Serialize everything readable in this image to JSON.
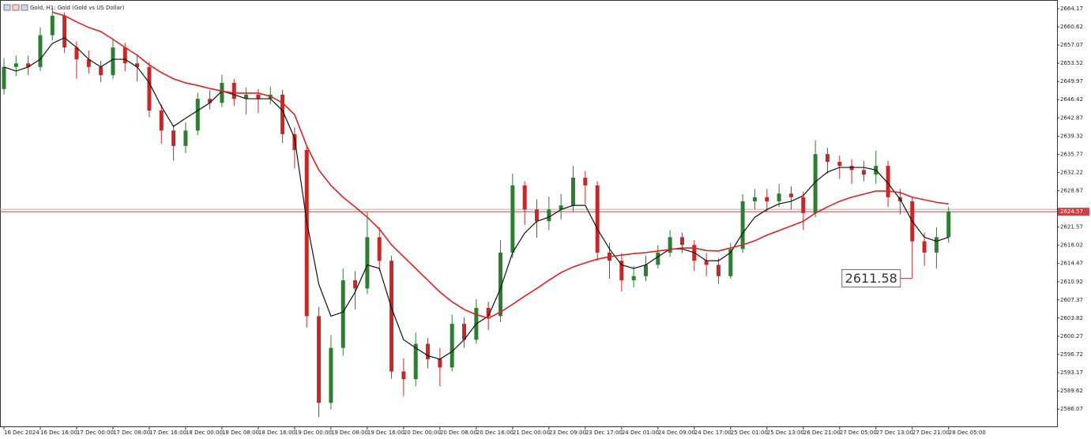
{
  "chart_data": {
    "type": "candlestick",
    "title": "Gold, H1:  Gold (Gold vs US Dollar)",
    "categories": [
      "16 Dec 2024",
      null,
      null,
      "16 Dec 16:00",
      null,
      null,
      "17 Dec 00:00",
      null,
      null,
      "17 Dec 08:00",
      null,
      null,
      "17 Dec 16:00",
      null,
      null,
      "18 Dec 00:00",
      null,
      null,
      "18 Dec 08:00",
      null,
      null,
      "18 Dec 16:00",
      null,
      null,
      "19 Dec 00:00",
      null,
      null,
      "19 Dec 08:00",
      null,
      null,
      "19 Dec 16:00",
      null,
      null,
      "20 Dec 00:00",
      null,
      null,
      "20 Dec 08:00",
      null,
      null,
      "20 Dec 16:00",
      null,
      null,
      "21 Dec 00:00",
      null,
      null,
      "23 Dec 09:00",
      null,
      null,
      "23 Dec 17:00",
      null,
      null,
      "24 Dec 01:00",
      null,
      null,
      "24 Dec 09:00",
      null,
      null,
      "24 Dec 17:00",
      null,
      null,
      "25 Dec 01:00",
      null,
      null,
      "25 Dec 13:00",
      null,
      null,
      "26 Dec 21:00",
      null,
      null,
      "27 Dec 05:00",
      null,
      null,
      "27 Dec 13:00",
      null,
      null,
      "27 Dec 21:00",
      null,
      null,
      "28 Dec 05:00"
    ],
    "open": [
      2648.5,
      2652.8,
      2653.5,
      2652.8,
      2659.0,
      2662.8,
      2656.6,
      2654.3,
      2652.8,
      2651.2,
      2656.6,
      2653.5,
      2652.8,
      2644.3,
      2640.4,
      2637.4,
      2640.4,
      2646.6,
      2645.8,
      2649.7,
      2646.6,
      2647.4,
      2646.6,
      2647.4,
      2639.7,
      2636.6,
      2604.2,
      2587.3,
      2598.0,
      2611.2,
      2609.6,
      2619.6,
      2615.0,
      2593.4,
      2591.9,
      2598.8,
      2595.8,
      2594.2,
      2602.7,
      2599.6,
      2605.8,
      2604.2,
      2616.6,
      2629.7,
      2625.0,
      2622.7,
      2625.0,
      2625.8,
      2631.2,
      2629.7,
      2616.6,
      2615.0,
      2611.2,
      2612.0,
      2614.2,
      2616.6,
      2619.6,
      2618.1,
      2615.0,
      2614.2,
      2612.0,
      2617.3,
      2626.6,
      2627.4,
      2626.6,
      2628.1,
      2627.4,
      2624.3,
      2635.8,
      2634.3,
      2633.5,
      2632.7,
      2631.8,
      2633.5,
      2627.4,
      2626.6,
      2618.8,
      2616.6,
      2619.6
    ],
    "high": [
      2654.5,
      2655.0,
      2655.0,
      2660.5,
      2664.5,
      2663.5,
      2657.8,
      2656.0,
      2654.0,
      2658.3,
      2657.5,
      2655.0,
      2653.8,
      2645.5,
      2641.5,
      2642.0,
      2647.8,
      2648.2,
      2651.3,
      2650.5,
      2648.8,
      2648.5,
      2649.0,
      2648.3,
      2641.0,
      2637.5,
      2606.0,
      2600.5,
      2613.5,
      2613.0,
      2624.5,
      2621.5,
      2616.0,
      2596.0,
      2601.0,
      2600.0,
      2598.0,
      2604.5,
      2604.0,
      2607.5,
      2607.0,
      2619.0,
      2632.0,
      2630.5,
      2627.0,
      2627.5,
      2628.0,
      2633.5,
      2632.5,
      2630.5,
      2618.5,
      2616.5,
      2614.0,
      2616.0,
      2618.0,
      2621.0,
      2620.5,
      2619.0,
      2616.5,
      2615.5,
      2618.5,
      2628.0,
      2629.0,
      2629.0,
      2630.0,
      2629.5,
      2628.5,
      2638.5,
      2637.0,
      2635.5,
      2634.8,
      2634.5,
      2636.5,
      2634.5,
      2629.0,
      2627.5,
      2620.5,
      2621.5,
      2625.5
    ],
    "low": [
      2647.4,
      2651.0,
      2651.2,
      2652.0,
      2658.0,
      2655.5,
      2650.5,
      2651.5,
      2649.8,
      2650.5,
      2652.0,
      2650.0,
      2643.0,
      2637.8,
      2634.5,
      2636.0,
      2639.5,
      2644.5,
      2645.0,
      2645.2,
      2643.5,
      2643.8,
      2645.5,
      2638.0,
      2633.0,
      2602.0,
      2584.5,
      2586.0,
      2596.5,
      2605.5,
      2608.5,
      2613.0,
      2592.0,
      2588.6,
      2590.5,
      2594.0,
      2590.5,
      2593.5,
      2598.0,
      2598.8,
      2601.5,
      2603.0,
      2615.5,
      2622.0,
      2619.5,
      2621.0,
      2623.0,
      2624.5,
      2626.0,
      2615.0,
      2611.5,
      2609.0,
      2609.8,
      2611.0,
      2613.5,
      2615.8,
      2616.5,
      2613.0,
      2612.0,
      2610.5,
      2611.5,
      2616.5,
      2625.0,
      2624.5,
      2625.5,
      2625.0,
      2621.0,
      2623.5,
      2632.0,
      2631.0,
      2630.0,
      2630.5,
      2630.0,
      2625.5,
      2624.0,
      2611.58,
      2614.0,
      2613.5,
      2618.5
    ],
    "close": [
      2652.8,
      2653.5,
      2652.8,
      2659.0,
      2662.8,
      2656.6,
      2654.3,
      2652.8,
      2651.2,
      2656.6,
      2653.5,
      2652.8,
      2644.3,
      2640.4,
      2637.4,
      2640.4,
      2646.6,
      2645.8,
      2649.7,
      2646.6,
      2647.4,
      2646.6,
      2647.4,
      2639.7,
      2636.6,
      2604.2,
      2587.3,
      2598.0,
      2611.2,
      2609.6,
      2619.6,
      2615.0,
      2593.4,
      2591.9,
      2598.8,
      2595.8,
      2594.2,
      2602.7,
      2599.6,
      2605.8,
      2604.2,
      2616.6,
      2629.7,
      2625.0,
      2622.7,
      2625.0,
      2625.8,
      2631.2,
      2629.7,
      2616.6,
      2615.0,
      2611.2,
      2612.0,
      2614.2,
      2616.6,
      2619.6,
      2618.1,
      2615.0,
      2614.2,
      2612.0,
      2617.3,
      2626.6,
      2627.4,
      2626.6,
      2628.1,
      2627.4,
      2624.3,
      2635.8,
      2634.3,
      2633.5,
      2632.7,
      2631.8,
      2633.5,
      2627.4,
      2626.6,
      2618.8,
      2616.6,
      2619.6,
      2624.57
    ],
    "up_color": "#2e7d32",
    "down_color": "#c62828",
    "lines": [
      {
        "color": "#111111",
        "values": [
          2652.8,
          2652.0,
          2652.8,
          2654.3,
          2657.4,
          2658.5,
          2656.6,
          2654.3,
          2652.8,
          2654.3,
          2654.3,
          2652.8,
          2649.7,
          2645.1,
          2641.2,
          2642.8,
          2644.3,
          2645.8,
          2648.1,
          2647.4,
          2646.6,
          2646.6,
          2646.6,
          2644.3,
          2638.9,
          2622.7,
          2610.4,
          2604.2,
          2605.0,
          2608.9,
          2614.2,
          2613.5,
          2605.8,
          2599.6,
          2598.0,
          2596.5,
          2595.8,
          2597.3,
          2599.6,
          2602.7,
          2604.2,
          2609.6,
          2616.6,
          2620.4,
          2622.7,
          2623.5,
          2625.0,
          2625.8,
          2625.8,
          2621.2,
          2617.3,
          2614.2,
          2613.5,
          2614.2,
          2615.8,
          2617.3,
          2617.3,
          2616.6,
          2615.0,
          2615.0,
          2616.6,
          2620.4,
          2623.5,
          2625.0,
          2626.1,
          2626.6,
          2627.7,
          2630.4,
          2632.3,
          2633.2,
          2633.2,
          2633.2,
          2632.7,
          2630.1,
          2627.0,
          2622.7,
          2619.6,
          2618.8,
          2619.6
        ]
      },
      {
        "color": "#e02020",
        "values": [
          null,
          null,
          null,
          null,
          2663.5,
          2662.8,
          2661.6,
          2660.5,
          2659.7,
          2658.2,
          2656.6,
          2655.1,
          2653.2,
          2651.7,
          2650.5,
          2649.7,
          2649.2,
          2648.6,
          2648.1,
          2647.7,
          2647.7,
          2647.7,
          2647.1,
          2645.8,
          2643.5,
          2637.4,
          2632.7,
          2629.7,
          2627.4,
          2625.5,
          2623.5,
          2621.2,
          2618.1,
          2615.8,
          2613.5,
          2611.2,
          2608.9,
          2607.0,
          2605.5,
          2604.5,
          2603.8,
          2605.0,
          2606.5,
          2608.1,
          2609.6,
          2611.2,
          2612.7,
          2613.8,
          2614.6,
          2615.3,
          2615.8,
          2616.1,
          2616.4,
          2616.6,
          2616.9,
          2617.2,
          2617.5,
          2617.5,
          2617.0,
          2616.9,
          2617.5,
          2618.1,
          2618.9,
          2620.0,
          2620.9,
          2621.8,
          2622.7,
          2624.3,
          2625.5,
          2626.6,
          2627.4,
          2628.0,
          2628.6,
          2628.6,
          2628.3,
          2627.4,
          2626.9,
          2626.4,
          2626.1
        ]
      }
    ],
    "ylim": [
      2582.7,
      2665.4
    ],
    "yticks": [
      2586.07,
      2589.62,
      2593.17,
      2596.72,
      2600.27,
      2603.82,
      2607.37,
      2610.92,
      2614.47,
      2618.02,
      2621.57,
      2628.67,
      2632.22,
      2635.77,
      2639.32,
      2642.87,
      2646.42,
      2649.97,
      2653.52,
      2657.07,
      2660.62,
      2664.17
    ],
    "current_price": 2624.57,
    "annotation_price": 2611.58
  }
}
